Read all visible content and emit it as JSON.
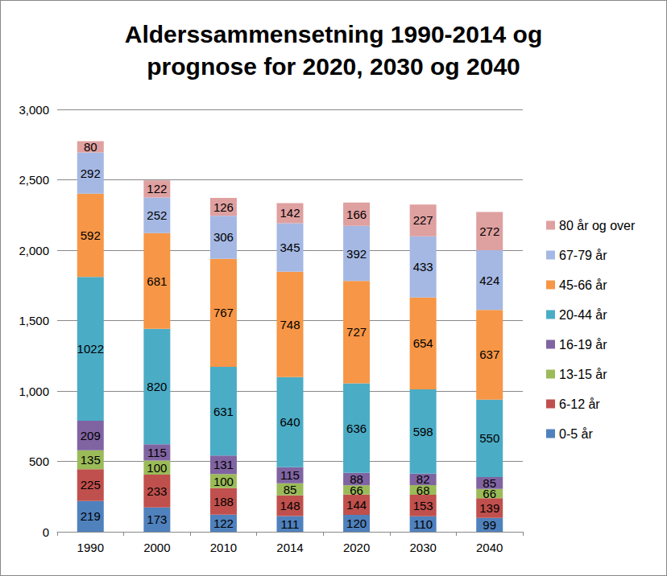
{
  "chart_data": {
    "type": "bar",
    "title": "Alderssammensetning 1990-2014 og\nprognose for 2020, 2030 og 2040",
    "categories": [
      "1990",
      "2000",
      "2010",
      "2014",
      "2020",
      "2030",
      "2040"
    ],
    "stacked": true,
    "data_labels": true,
    "grid": true,
    "legend": "right",
    "ylim": [
      0,
      3000
    ],
    "yticks": [
      0,
      500,
      1000,
      1500,
      2000,
      2500,
      3000
    ],
    "series": [
      {
        "name": "0-5 år",
        "color": "#4f81bd",
        "values": [
          219,
          173,
          122,
          111,
          120,
          110,
          99
        ]
      },
      {
        "name": "6-12 år",
        "color": "#c0504d",
        "values": [
          225,
          233,
          188,
          148,
          144,
          153,
          139
        ]
      },
      {
        "name": "13-15 år",
        "color": "#9bbb59",
        "values": [
          135,
          100,
          100,
          85,
          66,
          68,
          66
        ]
      },
      {
        "name": "16-19 år",
        "color": "#8064a2",
        "values": [
          209,
          115,
          131,
          115,
          88,
          82,
          85
        ]
      },
      {
        "name": "20-44 år",
        "color": "#4bacc6",
        "values": [
          1022,
          820,
          631,
          640,
          636,
          598,
          550
        ]
      },
      {
        "name": "45-66 år",
        "color": "#f79646",
        "values": [
          592,
          681,
          767,
          748,
          727,
          654,
          637
        ]
      },
      {
        "name": "67-79 år",
        "color": "#a5b8e3",
        "values": [
          292,
          252,
          306,
          345,
          392,
          433,
          424
        ]
      },
      {
        "name": "80 år og over",
        "color": "#dfa0a0",
        "values": [
          80,
          122,
          126,
          142,
          166,
          227,
          272
        ]
      }
    ]
  }
}
